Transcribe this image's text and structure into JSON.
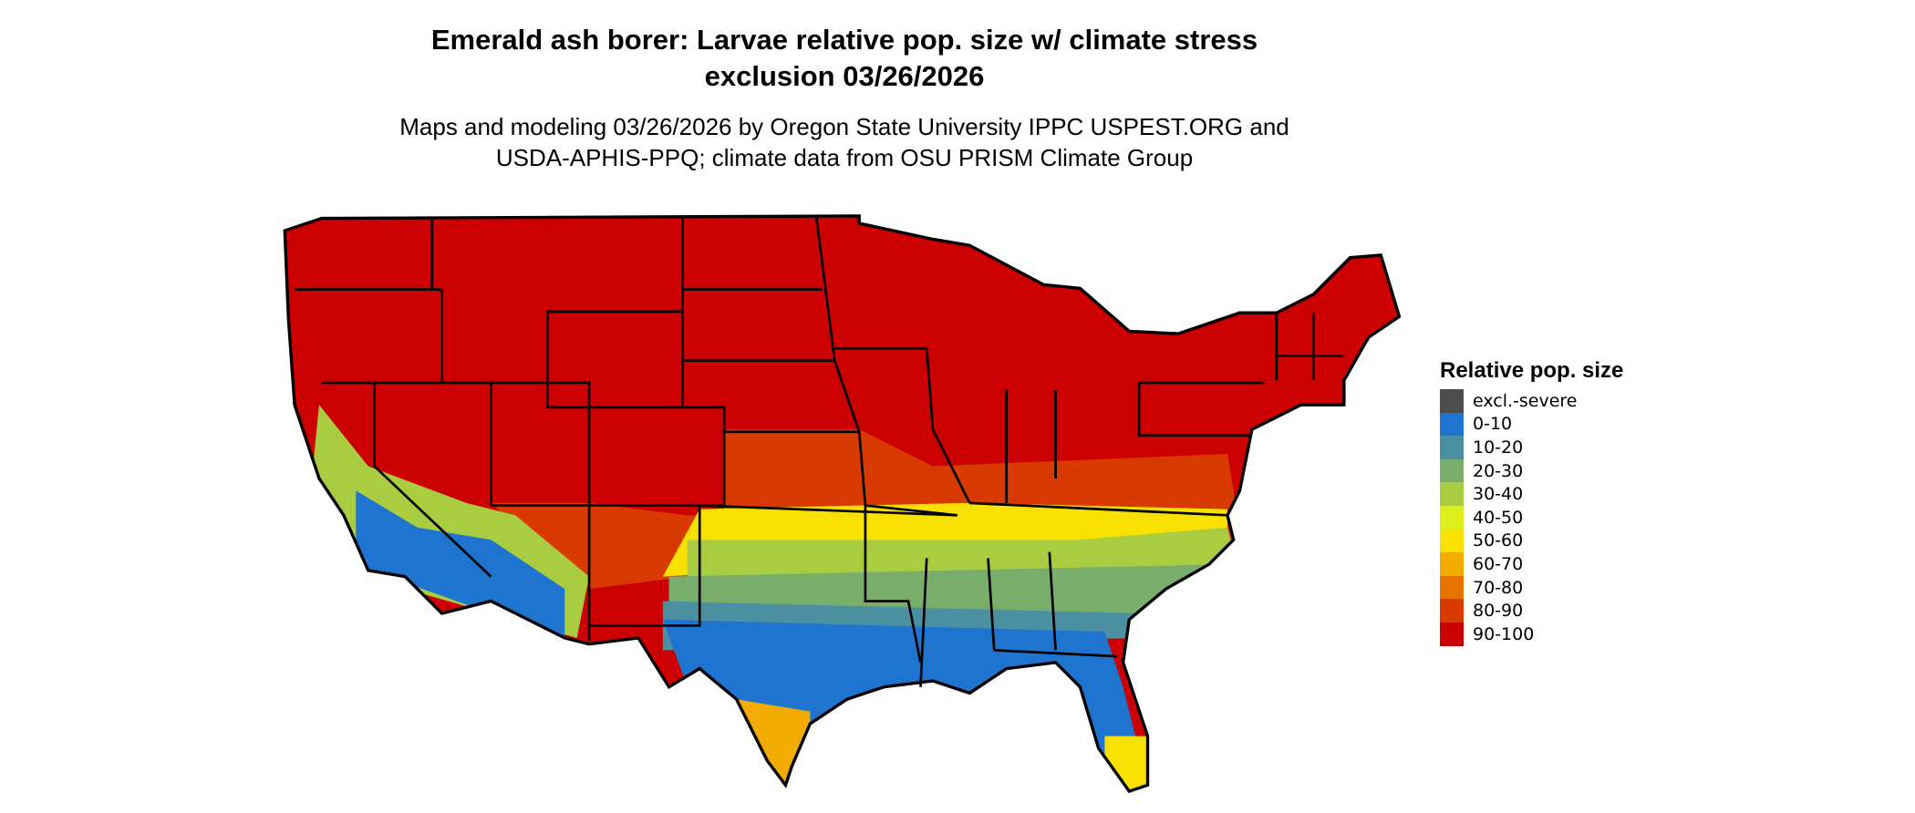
{
  "header": {
    "title": "Emerald ash borer: Larvae relative pop. size w/ climate stress exclusion 03/26/2026",
    "subtitle": "Maps and modeling 03/26/2026 by Oregon State University IPPC USPEST.ORG and USDA-APHIS-PPQ; climate data from OSU PRISM Climate Group"
  },
  "legend": {
    "title": "Relative pop. size",
    "items": [
      {
        "label": "excl.-severe",
        "color": "#4d4d4d"
      },
      {
        "label": "0-10",
        "color": "#1f74d0"
      },
      {
        "label": "10-20",
        "color": "#4a90a0"
      },
      {
        "label": "20-30",
        "color": "#78ad6c"
      },
      {
        "label": "30-40",
        "color": "#a9cc40"
      },
      {
        "label": "40-50",
        "color": "#def01c"
      },
      {
        "label": "50-60",
        "color": "#f8e000"
      },
      {
        "label": "60-70",
        "color": "#f2ac00"
      },
      {
        "label": "70-80",
        "color": "#e87400"
      },
      {
        "label": "80-90",
        "color": "#d83a00"
      },
      {
        "label": "90-100",
        "color": "#cc0000"
      }
    ]
  }
}
